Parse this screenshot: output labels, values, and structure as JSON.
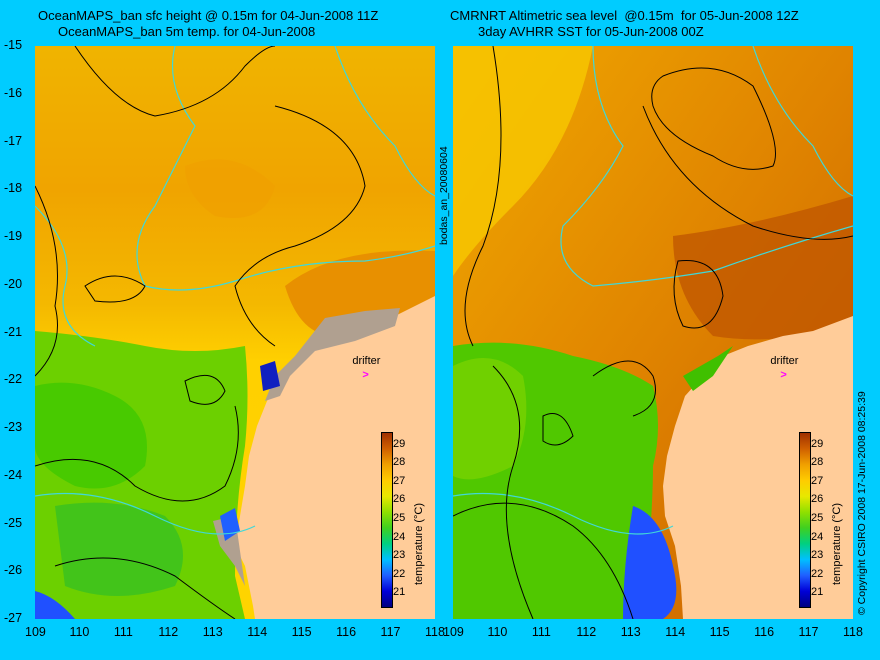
{
  "left_panel": {
    "title_line1": "OceanMAPS_ban sfc height @ 0.15m for 04-Jun-2008 11Z",
    "title_line2": "OceanMAPS_ban 5m temp. for 04-Jun-2008"
  },
  "right_panel": {
    "title_line1": "CMRNRT Altimetric sea level  @0.15m  for 05-Jun-2008 12Z",
    "title_line2": "3day AVHRR SST for 05-Jun-2008 00Z"
  },
  "axes": {
    "lon_ticks": [
      "109",
      "110",
      "111",
      "112",
      "113",
      "114",
      "115",
      "116",
      "117",
      "118"
    ],
    "lat_ticks": [
      "-15",
      "-16",
      "-17",
      "-18",
      "-19",
      "-20",
      "-21",
      "-22",
      "-23",
      "-24",
      "-25",
      "-26",
      "-27"
    ],
    "lon_range": [
      109,
      118
    ],
    "lat_range": [
      -27,
      -15
    ]
  },
  "run_label": "bodas_an_20080604",
  "copyright": "© Copyright CSIRO 2008  17-Jun-2008 08:25:39",
  "drifter": {
    "label": "drifter",
    "lon": 116.5,
    "lat": -21.9
  },
  "colorbar": {
    "title": "temperature (°C)",
    "ticks": [
      "29",
      "28",
      "27",
      "26",
      "25",
      "24",
      "23",
      "22",
      "21"
    ],
    "min": 20.3,
    "max": 29.7,
    "colors": [
      "#000080",
      "#0000d8",
      "#2060ff",
      "#00c0ff",
      "#00d080",
      "#40d020",
      "#90e000",
      "#e8e800",
      "#ffcc00",
      "#f0a000",
      "#d06000",
      "#a03000"
    ]
  },
  "colors": {
    "background": "#00ccff",
    "land": "#ffcc99",
    "shelf_grey": "#b0a090",
    "isobath": "#40d8d8",
    "contour": "#000000",
    "drifter": "#ff00ff"
  }
}
